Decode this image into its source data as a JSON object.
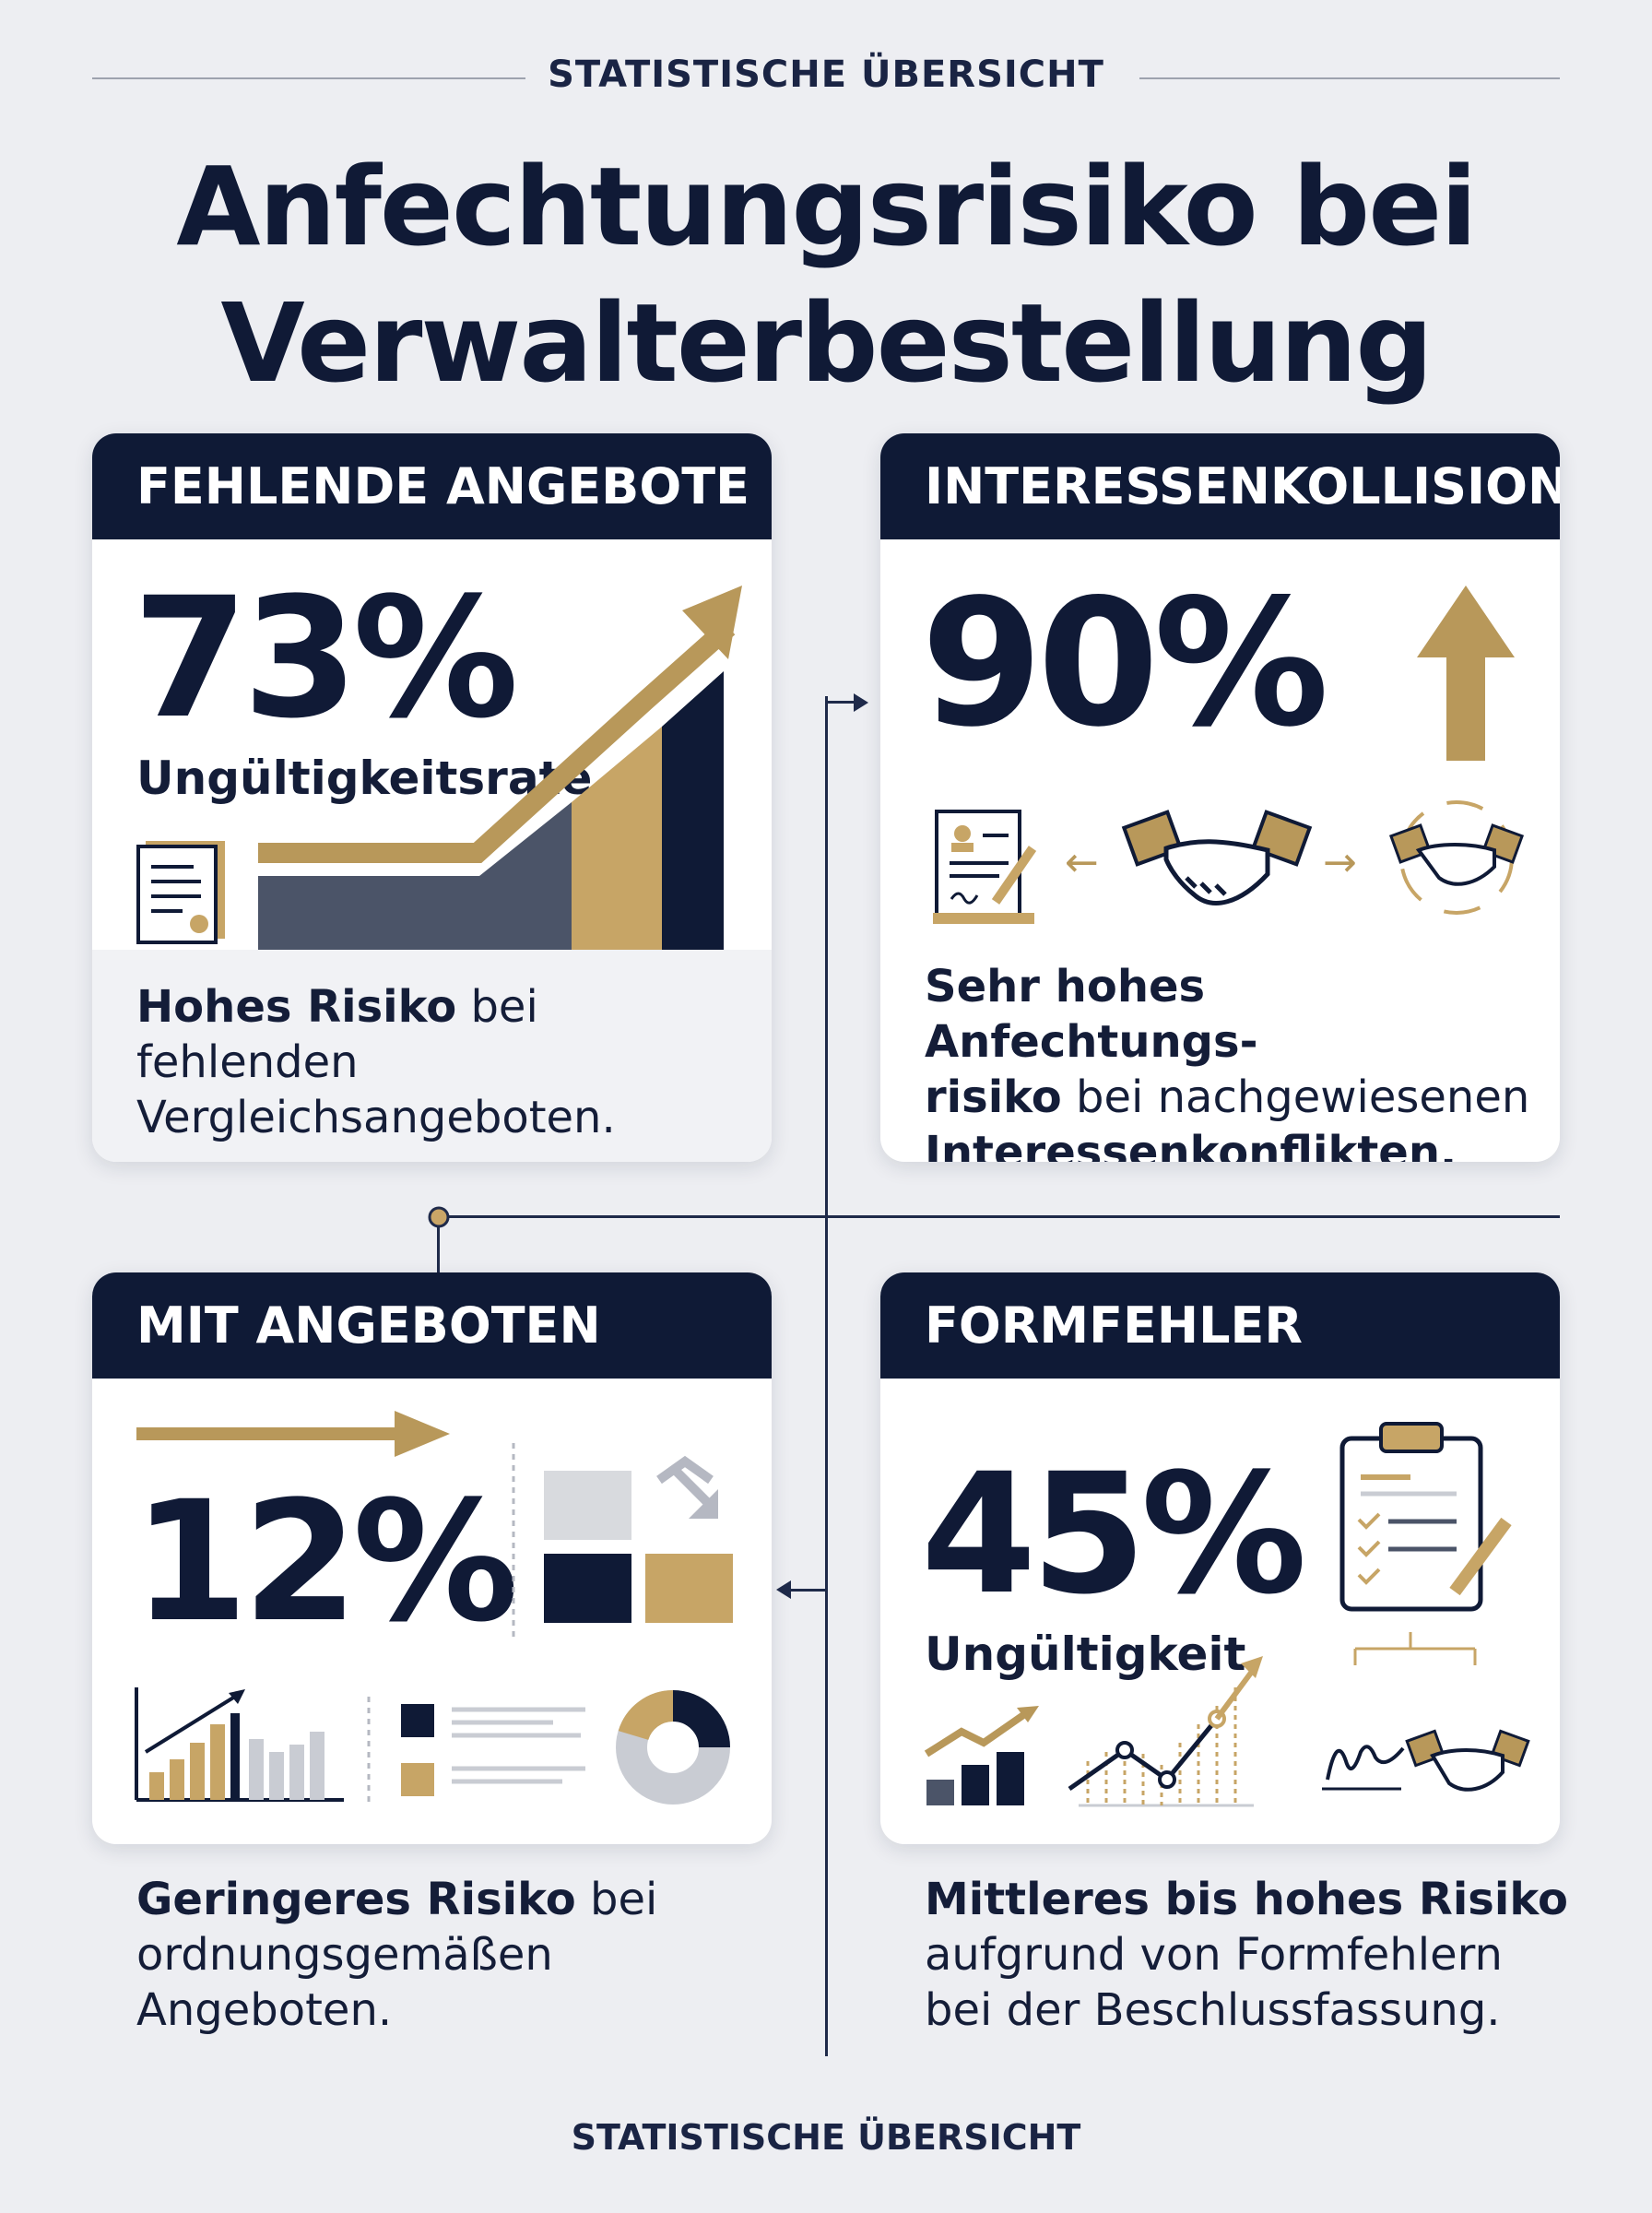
{
  "header": {
    "kicker": "STATISTISCHE ÜBERSICHT",
    "title_line1": "Anfechtungsrisiko bei",
    "title_line2": "Verwalterbestellung"
  },
  "cards": {
    "fehlende_angebote": {
      "heading": "FEHLENDE ANGEBOTE",
      "value": "73%",
      "value_label": "Ungültigkeitsrate",
      "desc_bold": "Hohes Risiko",
      "desc_rest": " bei fehlenden",
      "desc_line2": "Vergleichsangeboten."
    },
    "interessenkollision": {
      "heading": "INTERESSENKOLLISION",
      "value": "90%",
      "desc_line1": "Sehr hohes Anfechtungs-",
      "desc_line2_bold": "risiko",
      "desc_line2_rest": " bei nachgewiesenen",
      "desc_line3": "Interessenkonflikten."
    },
    "mit_angeboten": {
      "heading": "MIT ANGEBOTEN",
      "value": "12%",
      "desc_bold": "Geringeres Risiko",
      "desc_rest": " bei",
      "desc_line2": "ordnungsgemäßen",
      "desc_line3": "Angeboten."
    },
    "formfehler": {
      "heading": "FORMFEHLER",
      "value": "45%",
      "value_label": "Ungültigkeit",
      "desc_bold": "Mittleres bis hohes Risiko",
      "desc_line2": "aufgrund von Formfehlern",
      "desc_line3": "bei der Beschlussfassung."
    }
  },
  "footer": {
    "text": "STATISTISCHE ÜBERSICHT"
  },
  "colors": {
    "navy": "#0f1a36",
    "gold": "#b8985a",
    "slate": "#4b5468",
    "page": "#edeef2"
  }
}
